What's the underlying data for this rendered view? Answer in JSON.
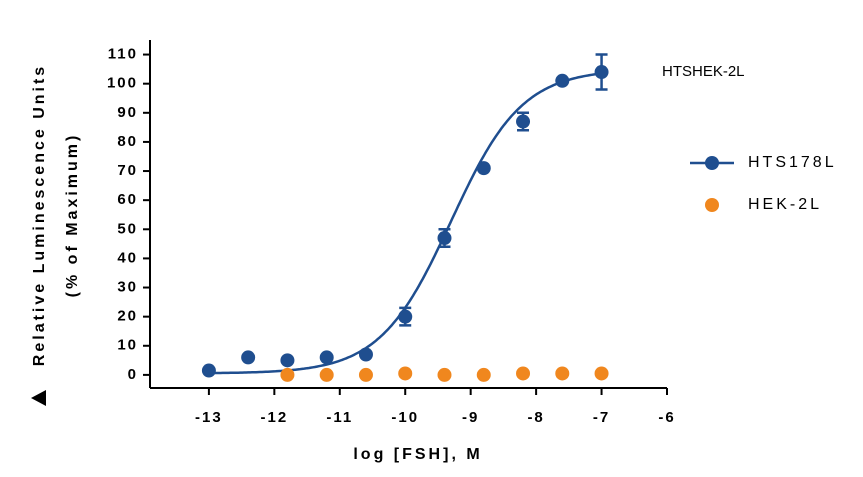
{
  "chart_data": {
    "type": "scatter",
    "annotation": "HTSHEK-2L",
    "x_label": "log [FSH], M",
    "y_label": [
      "Relative Luminescence Units",
      "(% of Maximum)"
    ],
    "xlim": [
      -13.9,
      -6
    ],
    "xticks": [
      -13,
      -12,
      -11,
      -10,
      -9,
      -8,
      -7,
      -6
    ],
    "ylim": [
      -4.5,
      115
    ],
    "yticks": [
      0,
      10,
      20,
      30,
      40,
      50,
      60,
      70,
      80,
      90,
      100,
      110
    ],
    "series": [
      {
        "name": "HTS178L",
        "color": "#1f4e8f",
        "x": [
          -13,
          -12.4,
          -11.8,
          -11.2,
          -10.6,
          -10,
          -9.4,
          -8.8,
          -8.2,
          -7.6,
          -7
        ],
        "values": [
          1.5,
          6,
          5,
          6,
          7,
          20,
          47,
          71,
          87,
          101,
          104
        ],
        "errors": [
          0,
          0,
          0,
          0,
          0,
          3,
          3,
          0,
          3,
          0,
          6
        ],
        "fit": {
          "bottom": 0.5,
          "top": 105,
          "logec50": -9.3,
          "hill": 0.8
        }
      },
      {
        "name": "HEK-2L",
        "color": "#f0871e",
        "x": [
          -11.8,
          -11.2,
          -10.6,
          -10,
          -9.4,
          -8.8,
          -8.2,
          -7.6,
          -7
        ],
        "values": [
          0,
          0,
          0,
          0.5,
          0,
          0,
          0.5,
          0.5,
          0.5
        ]
      }
    ]
  }
}
